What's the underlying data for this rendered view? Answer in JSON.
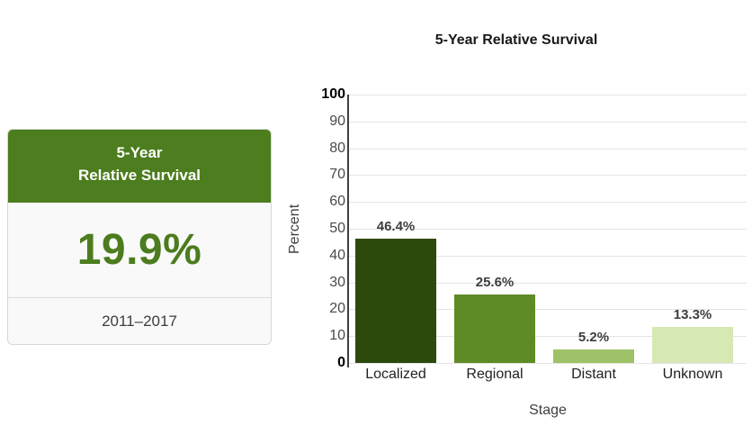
{
  "stat_card": {
    "title_line1": "5-Year",
    "title_line2": "Relative Survival",
    "value": "19.9%",
    "period": "2011–2017",
    "header_color": "#4C7D1E",
    "value_color": "#4C7C1E"
  },
  "chart_data": {
    "type": "bar",
    "title": "5-Year Relative Survival",
    "xlabel": "Stage",
    "ylabel": "Percent",
    "categories": [
      "Localized",
      "Regional",
      "Distant",
      "Unknown"
    ],
    "values": [
      46.4,
      25.6,
      5.2,
      13.3
    ],
    "value_labels": [
      "46.4%",
      "25.6%",
      "5.2%",
      "13.3%"
    ],
    "bar_colors": [
      "#2D4A0D",
      "#5E8B26",
      "#9FC268",
      "#D6E8B4"
    ],
    "ylim": [
      0,
      100
    ],
    "ytick_step": 10,
    "grid": true,
    "legend": "none",
    "grid_color": "#e4e4e4",
    "axis_color": "#3f3f3f"
  }
}
